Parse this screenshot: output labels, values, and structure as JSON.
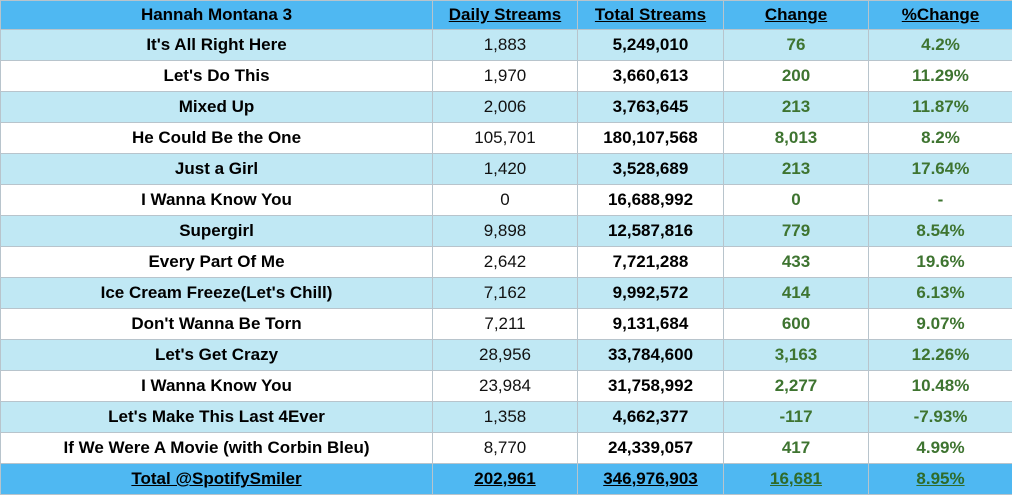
{
  "header": {
    "title": "Hannah Montana 3",
    "daily": "Daily Streams",
    "total": "Total Streams",
    "change": "Change",
    "pct": "%Change"
  },
  "rows": [
    {
      "song": "It's All Right Here",
      "daily": "1,883",
      "total": "5,249,010",
      "change": "76",
      "pct": "4.2%"
    },
    {
      "song": "Let's Do This",
      "daily": "1,970",
      "total": "3,660,613",
      "change": "200",
      "pct": "11.29%"
    },
    {
      "song": "Mixed Up",
      "daily": "2,006",
      "total": "3,763,645",
      "change": "213",
      "pct": "11.87%"
    },
    {
      "song": "He Could Be the One",
      "daily": "105,701",
      "total": "180,107,568",
      "change": "8,013",
      "pct": "8.2%"
    },
    {
      "song": "Just a Girl",
      "daily": "1,420",
      "total": "3,528,689",
      "change": "213",
      "pct": "17.64%"
    },
    {
      "song": "I Wanna Know You",
      "daily": "0",
      "total": "16,688,992",
      "change": "0",
      "pct": "-"
    },
    {
      "song": "Supergirl",
      "daily": "9,898",
      "total": "12,587,816",
      "change": "779",
      "pct": "8.54%"
    },
    {
      "song": "Every Part Of Me",
      "daily": "2,642",
      "total": "7,721,288",
      "change": "433",
      "pct": "19.6%"
    },
    {
      "song": "Ice Cream Freeze(Let's Chill)",
      "daily": "7,162",
      "total": "9,992,572",
      "change": "414",
      "pct": "6.13%"
    },
    {
      "song": "Don't Wanna Be Torn",
      "daily": "7,211",
      "total": "9,131,684",
      "change": "600",
      "pct": "9.07%"
    },
    {
      "song": "Let's Get Crazy",
      "daily": "28,956",
      "total": "33,784,600",
      "change": "3,163",
      "pct": "12.26%"
    },
    {
      "song": "I Wanna Know You",
      "daily": "23,984",
      "total": "31,758,992",
      "change": "2,277",
      "pct": "10.48%"
    },
    {
      "song": "Let's Make This Last 4Ever",
      "daily": "1,358",
      "total": "4,662,377",
      "change": "-117",
      "pct": "-7.93%"
    },
    {
      "song": "If We Were A Movie (with Corbin Bleu)",
      "daily": "8,770",
      "total": "24,339,057",
      "change": "417",
      "pct": "4.99%"
    }
  ],
  "footer": {
    "label": "Total @SpotifySmiler",
    "daily": "202,961",
    "total": "346,976,903",
    "change": "16,681",
    "pct": "8.95%"
  },
  "colors": {
    "header_bg": "#4fb8f2",
    "row_alt_bg": "#c0e8f4",
    "change_text": "#3e7430"
  }
}
